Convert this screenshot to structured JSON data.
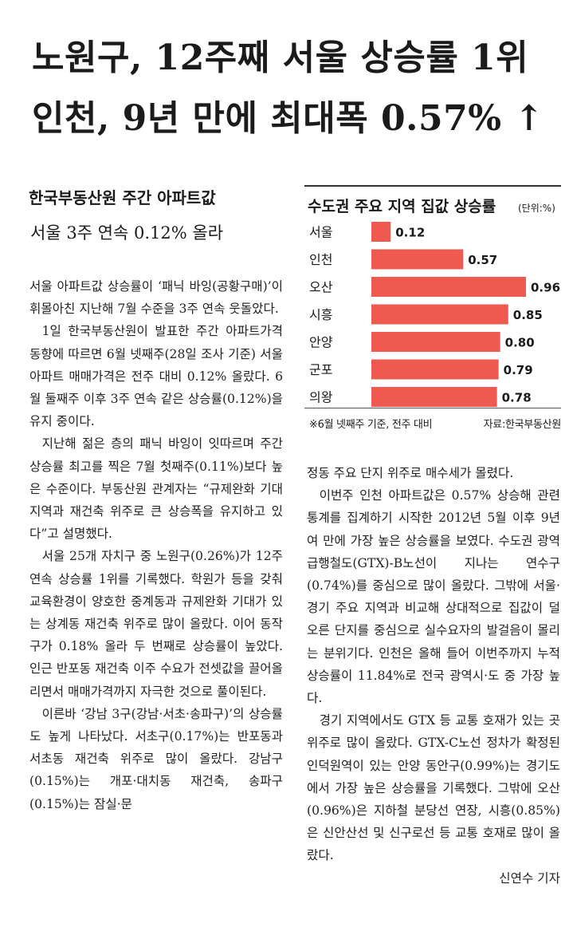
{
  "headline": {
    "line1": "노원구, 12주째 서울 상승률 1위",
    "line2": "인천, 9년 만에 최대폭 0.57% ↑"
  },
  "subheads": {
    "first": "한국부동산원 주간 아파트값",
    "second": "서울 3주 연속 0.12% 올라"
  },
  "article": {
    "left_paragraphs": [
      "서울 아파트값 상승률이 ‘패닉 바잉(공황구매)’이 휘몰아친 지난해 7월 수준을 3주 연속 웃돌았다.",
      "1일 한국부동산원이 발표한 주간 아파트가격 동향에 따르면 6월 넷째주(28일 조사 기준) 서울 아파트 매매가격은 전주 대비 0.12% 올랐다. 6월 둘째주 이후 3주 연속 같은 상승률(0.12%)을 유지 중이다.",
      "지난해 젊은 층의 패닉 바잉이 잇따르며 주간 상승률 최고를 찍은 7월 첫째주(0.11%)보다 높은 수준이다. 부동산원 관계자는 “규제완화 기대 지역과 재건축 위주로 큰 상승폭을 유지하고 있다”고 설명했다.",
      "서울 25개 자치구 중 노원구(0.26%)가 12주 연속 상승률 1위를 기록했다. 학원가 등을 갖춰 교육환경이 양호한 중계동과 규제완화 기대가 있는 상계동 재건축 위주로 많이 올랐다. 이어 동작구가 0.18% 올라 두 번째로 상승률이 높았다. 인근 반포동 재건축 이주 수요가 전셋값을 끌어올리면서 매매가격까지 자극한 것으로 풀이된다.",
      "이른바 ‘강남 3구(강남·서초·송파구)’의 상승률도 높게 나타났다. 서초구(0.17%)는 반포동과 서초동 재건축 위주로 많이 올랐다. 강남구(0.15%)는 개포·대치동 재건축, 송파구(0.15%)는 잠실·문"
    ],
    "right_paragraphs": [
      "정동 주요 단지 위주로 매수세가 몰렸다.",
      "이번주 인천 아파트값은 0.57% 상승해 관련 통계를 집계하기 시작한 2012년 5월 이후 9년여 만에 가장 높은 상승률을 보였다. 수도권 광역급행철도(GTX)-B노선이 지나는 연수구(0.74%)를 중심으로 많이 올랐다. 그밖에 서울·경기 주요 지역과 비교해 상대적으로 집값이 덜 오른 단지를 중심으로 실수요자의 발걸음이 몰리는 분위기다. 인천은 올해 들어 이번주까지 누적 상승률이 11.84%로 전국 광역시·도 중 가장 높다.",
      "경기 지역에서도 GTX 등 교통 호재가 있는 곳 위주로 많이 올랐다. GTX-C노선 정차가 확정된 인덕원역이 있는 안양 동안구(0.99%)는 경기도에서 가장 높은 상승률을 기록했다. 그밖에 오산(0.96%)은 지하철 분당선 연장, 시흥(0.85%)은 신안산선 및 신구로선 등 교통 호재로 많이 올랐다."
    ],
    "byline": "신연수 기자"
  },
  "chart_data": {
    "type": "bar",
    "orientation": "horizontal",
    "title": "수도권 주요 지역 집값 상승률",
    "unit": "(단위:%)",
    "categories": [
      "서울",
      "인천",
      "오산",
      "시흥",
      "안양",
      "군포",
      "의왕"
    ],
    "values": [
      0.12,
      0.57,
      0.96,
      0.85,
      0.8,
      0.79,
      0.78
    ],
    "value_labels": [
      "0.12",
      "0.57",
      "0.96",
      "0.85",
      "0.80",
      "0.79",
      "0.78"
    ],
    "xlim": [
      0,
      0.96
    ],
    "bar_color": "#ee5a50",
    "note": "※6월 넷째주 기준, 전주 대비",
    "source": "자료:한국부동산원"
  }
}
